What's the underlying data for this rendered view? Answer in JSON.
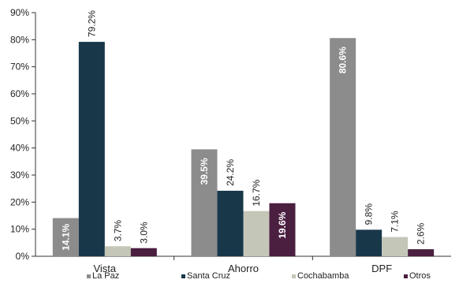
{
  "chart_data": {
    "type": "bar",
    "categories": [
      "Vista",
      "Ahorro",
      "DPF"
    ],
    "series": [
      {
        "name": "La Paz",
        "values": [
          14.1,
          39.5,
          80.6
        ],
        "color": "#8c8c8c"
      },
      {
        "name": "Santa Cruz",
        "values": [
          79.2,
          24.2,
          9.8
        ],
        "color": "#18384a"
      },
      {
        "name": "Cochabamba",
        "values": [
          3.7,
          16.7,
          7.1
        ],
        "color": "#c4c6b8"
      },
      {
        "name": "Otros",
        "values": [
          3.0,
          19.6,
          2.6
        ],
        "color": "#4a1f40"
      }
    ],
    "data_labels": [
      [
        "14.1%",
        "39.5%",
        "80.6%"
      ],
      [
        "79.2%",
        "24.2%",
        "9.8%"
      ],
      [
        "3.7%",
        "16.7%",
        "7.1%"
      ],
      [
        "3.0%",
        "19.6%",
        "2.6%"
      ]
    ],
    "label_inside": [
      [
        true,
        true,
        true
      ],
      [
        false,
        false,
        false
      ],
      [
        false,
        false,
        false
      ],
      [
        false,
        true,
        false
      ]
    ],
    "ylim": [
      0,
      90
    ],
    "yticks": [
      "0%",
      "10%",
      "20%",
      "30%",
      "40%",
      "50%",
      "60%",
      "70%",
      "80%",
      "90%"
    ],
    "grid": false,
    "legend_position": "bottom",
    "title": "",
    "xlabel": "",
    "ylabel": ""
  }
}
